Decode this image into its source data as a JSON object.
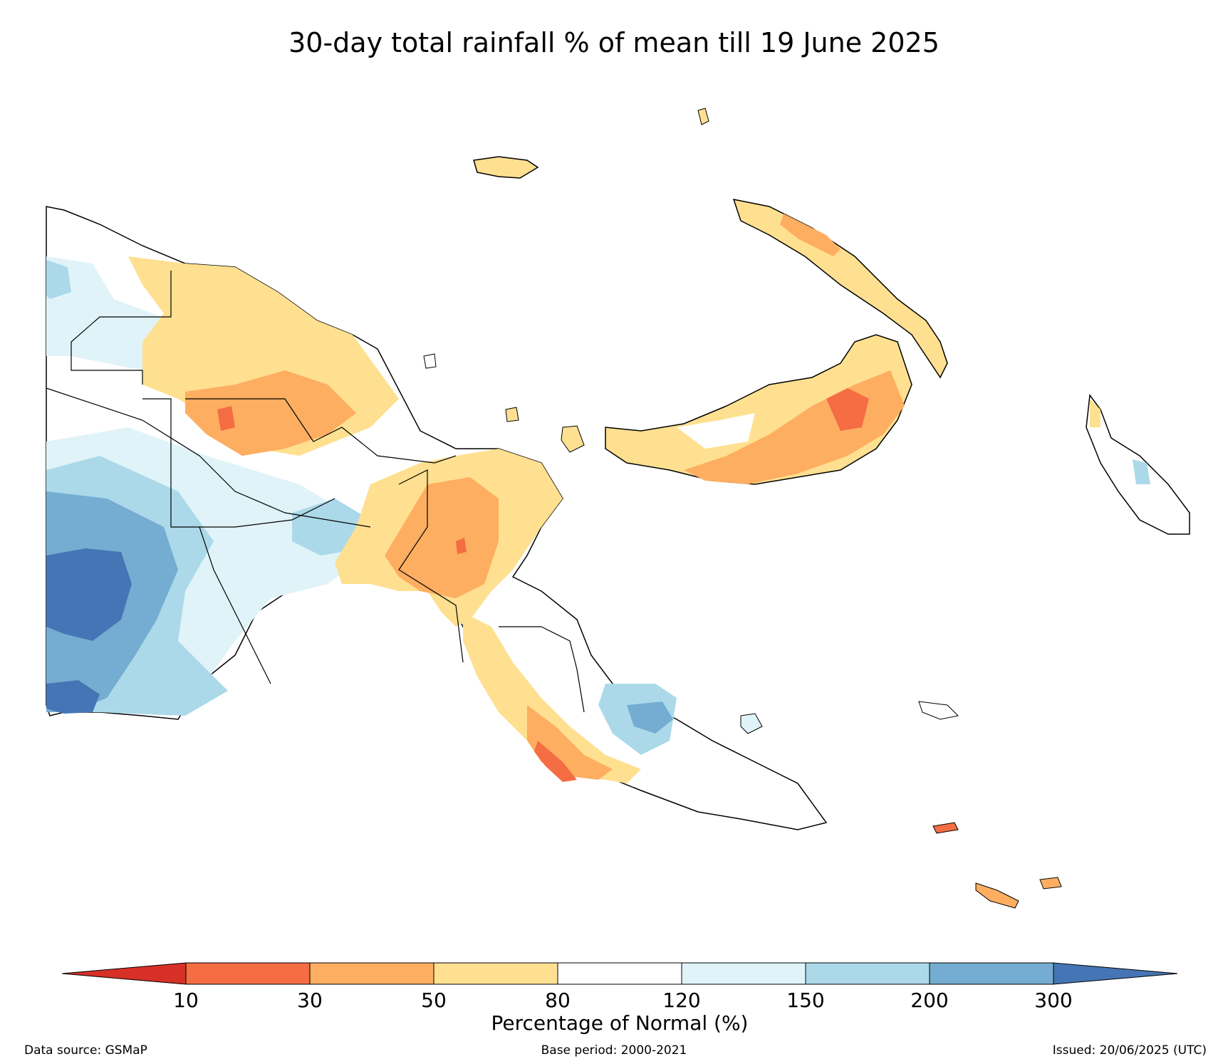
{
  "title": "30-day total rainfall % of mean till 19 June 2025",
  "legend": {
    "label": "Percentage of Normal (%)",
    "ticks": [
      "10",
      "30",
      "50",
      "80",
      "120",
      "150",
      "200",
      "300"
    ],
    "colors": {
      "lt10": "#d73027",
      "c10_30": "#f46d43",
      "c30_50": "#fdae61",
      "c50_80": "#fee090",
      "c80_120": "#ffffff",
      "c120_150": "#e0f3f8",
      "c150_200": "#abd9e9",
      "c200_300": "#74add1",
      "gt300": "#4575b4"
    }
  },
  "footer": {
    "source": "Data source: GSMaP",
    "base_period": "Base period: 2000-2021",
    "issued": "Issued: 20/06/2025 (UTC)"
  }
}
